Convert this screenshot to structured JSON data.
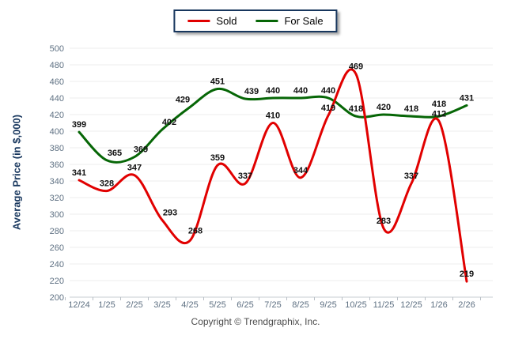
{
  "legend": {
    "items": [
      {
        "label": "Sold",
        "color": "#e10000"
      },
      {
        "label": "For Sale",
        "color": "#066606"
      }
    ]
  },
  "footer": {
    "copyright": "Copyright © Trendgraphix, Inc."
  },
  "chart_data": {
    "type": "line",
    "title": "",
    "categories": [
      "12/24",
      "1/25",
      "2/25",
      "3/25",
      "4/25",
      "5/25",
      "6/25",
      "7/25",
      "8/25",
      "9/25",
      "10/25",
      "11/25",
      "12/25",
      "1/26",
      "2/26"
    ],
    "series": [
      {
        "name": "Sold",
        "color": "#e10000",
        "values": [
          341,
          328,
          347,
          293,
          268,
          359,
          337,
          410,
          344,
          419,
          469,
          283,
          337,
          412,
          219
        ]
      },
      {
        "name": "For Sale",
        "color": "#066606",
        "values": [
          399,
          365,
          369,
          402,
          429,
          451,
          439,
          440,
          440,
          440,
          418,
          420,
          418,
          418,
          431
        ]
      }
    ],
    "xlabel": "",
    "ylabel": "Average Price (in $,000)",
    "ylim": [
      200,
      500
    ],
    "ytick_step": 20,
    "grid": true,
    "smooth": true,
    "legend_position": "top-center",
    "grid_color": "#ececec",
    "axis_line_color": "#c7ccd1",
    "tick_color": "#b9bfc6",
    "axis_text_color": "#5f7183",
    "point_label_color": "#111111"
  }
}
